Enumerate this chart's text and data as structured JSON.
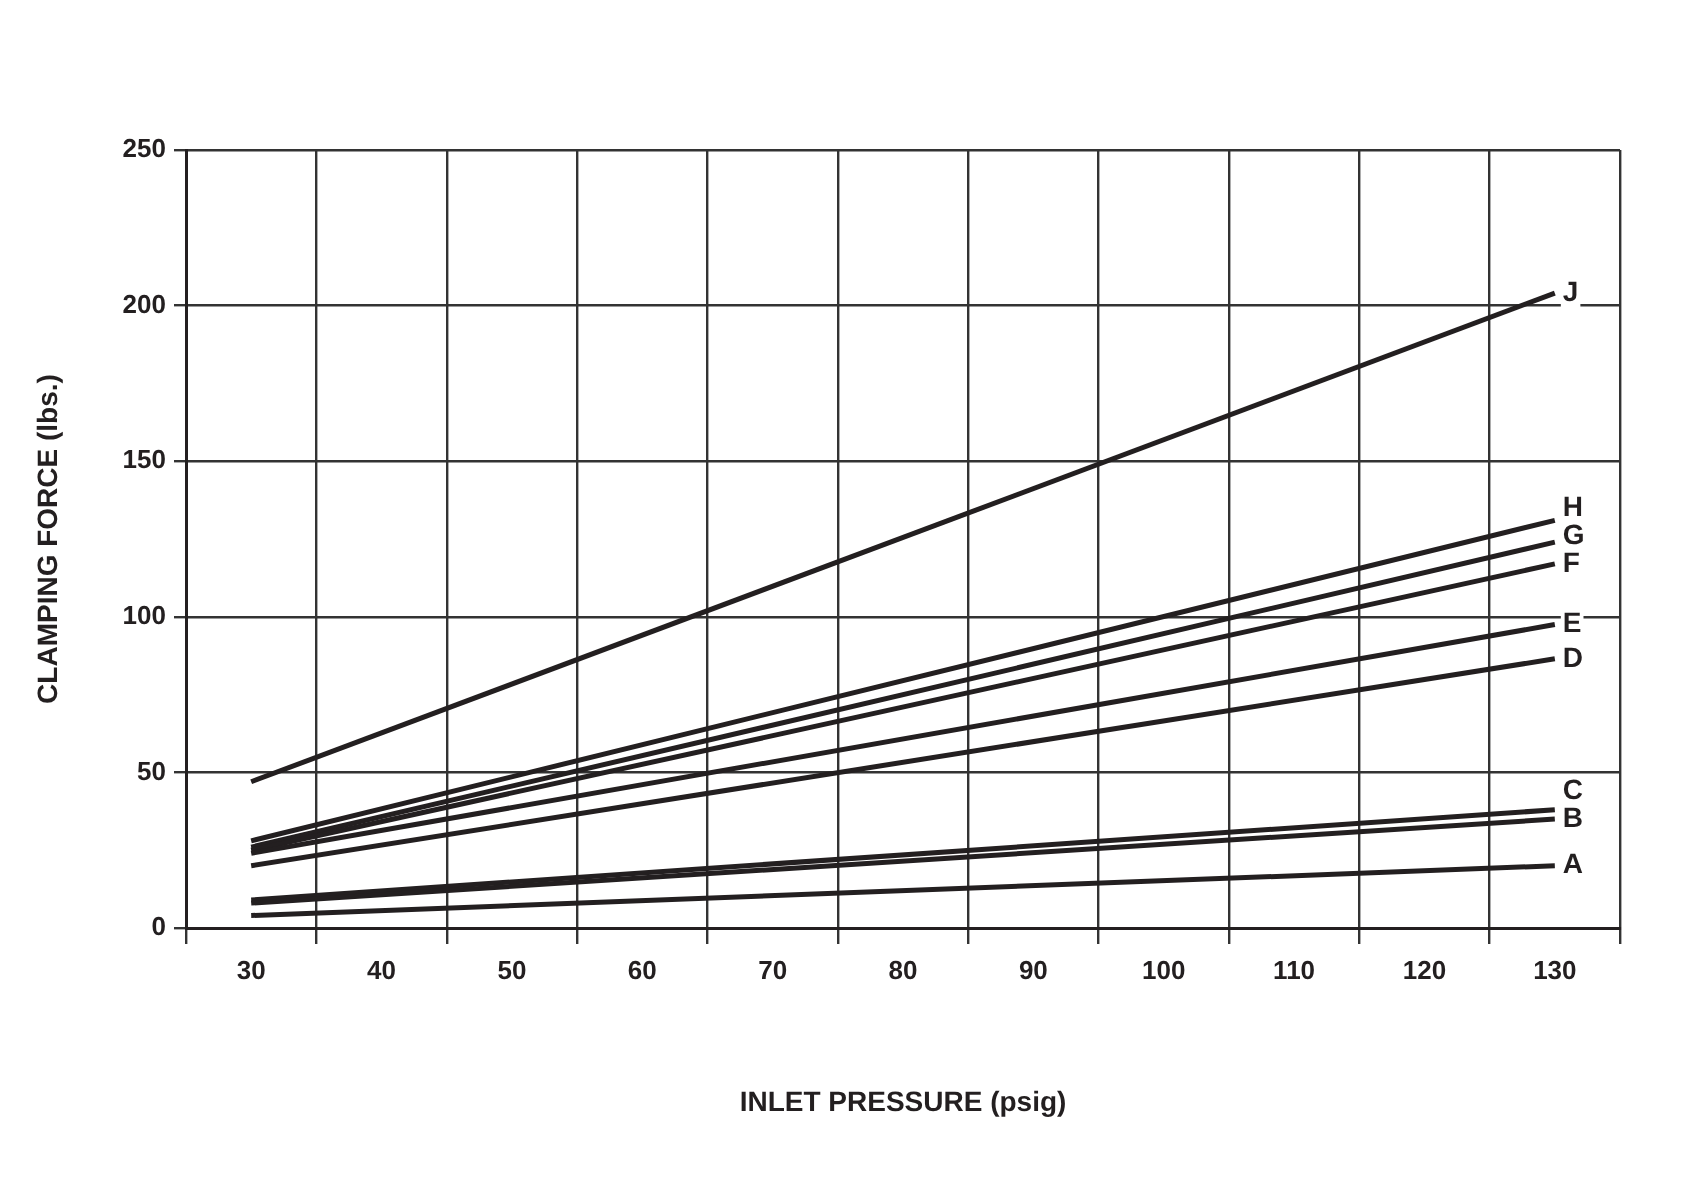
{
  "chart_data": {
    "type": "line",
    "xlabel": "INLET PRESSURE (psig)",
    "ylabel": "CLAMPING FORCE (lbs.)",
    "x": [
      30,
      130
    ],
    "series": [
      {
        "name": "A",
        "color": "#231f20",
        "values": [
          4,
          20
        ]
      },
      {
        "name": "B",
        "color": "#231f20",
        "values": [
          8,
          35
        ]
      },
      {
        "name": "C",
        "color": "#231f20",
        "values": [
          9,
          38
        ]
      },
      {
        "name": "D",
        "color": "#231f20",
        "values": [
          20,
          86.5
        ]
      },
      {
        "name": "E",
        "color": "#231f20",
        "values": [
          24,
          97.5
        ]
      },
      {
        "name": "F",
        "color": "#231f20",
        "values": [
          25,
          117
        ]
      },
      {
        "name": "G",
        "color": "#231f20",
        "values": [
          26,
          124
        ]
      },
      {
        "name": "H",
        "color": "#231f20",
        "values": [
          28,
          131
        ]
      },
      {
        "name": "J",
        "color": "#231f20",
        "values": [
          47,
          204
        ]
      }
    ],
    "xlim": [
      25,
      135
    ],
    "xticks": [
      {
        "value": 25,
        "label": null
      },
      30,
      {
        "value": 35,
        "label": null
      },
      40,
      {
        "value": 45,
        "label": null
      },
      50,
      {
        "value": 55,
        "label": null
      },
      60,
      {
        "value": 65,
        "label": null
      },
      70,
      {
        "value": 75,
        "label": null
      },
      80,
      {
        "value": 85,
        "label": null
      },
      90,
      {
        "value": 95,
        "label": null
      },
      100,
      {
        "value": 105,
        "label": null
      },
      110,
      {
        "value": 115,
        "label": null
      },
      120,
      {
        "value": 125,
        "label": null
      },
      130,
      {
        "value": 135,
        "label": null
      }
    ],
    "ylim": [
      0,
      250
    ],
    "yticks": [
      0,
      50,
      100,
      150,
      200,
      250
    ],
    "grid": true,
    "legend": false,
    "marker": "none",
    "line_style": "solid"
  }
}
